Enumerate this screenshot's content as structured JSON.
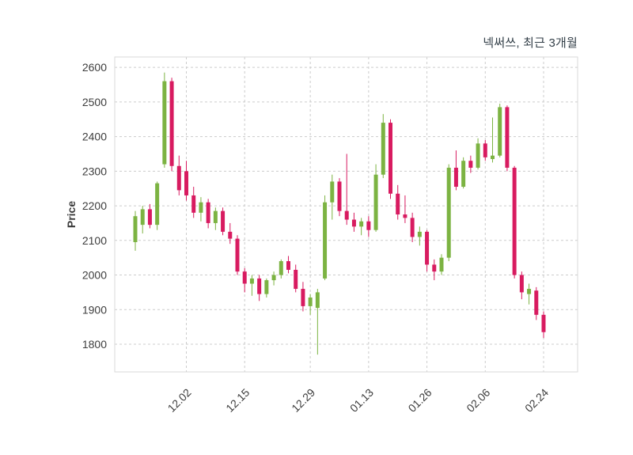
{
  "chart_data": {
    "type": "candlestick",
    "title": "넥써쓰, 최근 3개월",
    "ylabel": "Price",
    "grid": true,
    "legend": "none",
    "up_color": "#7cb342",
    "down_color": "#d81b60",
    "ylim": [
      1720,
      2630
    ],
    "y_ticks": [
      1800,
      1900,
      2000,
      2100,
      2200,
      2300,
      2400,
      2500,
      2600
    ],
    "x_tick_labels": [
      "12.02",
      "12.15",
      "12.29",
      "01.13",
      "01.26",
      "02.06",
      "02.24"
    ],
    "x_tick_indices": [
      7,
      15,
      24,
      32,
      40,
      48,
      56
    ],
    "candles_format": "open,high,low,close",
    "candles": [
      [
        2095,
        2185,
        2070,
        2170
      ],
      [
        2145,
        2200,
        2120,
        2190
      ],
      [
        2190,
        2205,
        2135,
        2145
      ],
      [
        2145,
        2270,
        2130,
        2265
      ],
      [
        2320,
        2585,
        2310,
        2560
      ],
      [
        2560,
        2570,
        2300,
        2315
      ],
      [
        2315,
        2345,
        2230,
        2245
      ],
      [
        2300,
        2330,
        2215,
        2230
      ],
      [
        2230,
        2255,
        2165,
        2180
      ],
      [
        2180,
        2225,
        2155,
        2210
      ],
      [
        2210,
        2220,
        2135,
        2150
      ],
      [
        2150,
        2195,
        2130,
        2185
      ],
      [
        2185,
        2195,
        2115,
        2125
      ],
      [
        2125,
        2150,
        2090,
        2105
      ],
      [
        2105,
        2115,
        2000,
        2010
      ],
      [
        2010,
        2020,
        1950,
        1975
      ],
      [
        1975,
        2000,
        1940,
        1990
      ],
      [
        1990,
        2000,
        1925,
        1945
      ],
      [
        1945,
        1990,
        1935,
        1985
      ],
      [
        1985,
        2010,
        1970,
        2000
      ],
      [
        2000,
        2045,
        1990,
        2040
      ],
      [
        2040,
        2055,
        2005,
        2015
      ],
      [
        2015,
        2030,
        1950,
        1960
      ],
      [
        1960,
        1980,
        1895,
        1910
      ],
      [
        1910,
        1945,
        1885,
        1935
      ],
      [
        1905,
        1960,
        1770,
        1950
      ],
      [
        1990,
        2230,
        1985,
        2210
      ],
      [
        2210,
        2290,
        2160,
        2270
      ],
      [
        2270,
        2280,
        2170,
        2185
      ],
      [
        2185,
        2350,
        2145,
        2160
      ],
      [
        2160,
        2180,
        2125,
        2140
      ],
      [
        2140,
        2165,
        2115,
        2155
      ],
      [
        2155,
        2170,
        2110,
        2130
      ],
      [
        2130,
        2320,
        2125,
        2290
      ],
      [
        2290,
        2465,
        2280,
        2440
      ],
      [
        2440,
        2450,
        2220,
        2235
      ],
      [
        2235,
        2260,
        2160,
        2175
      ],
      [
        2175,
        2230,
        2150,
        2165
      ],
      [
        2165,
        2180,
        2095,
        2110
      ],
      [
        2110,
        2140,
        2085,
        2125
      ],
      [
        2125,
        2130,
        2010,
        2030
      ],
      [
        2030,
        2045,
        1985,
        2010
      ],
      [
        2010,
        2060,
        2000,
        2050
      ],
      [
        2050,
        2320,
        2040,
        2310
      ],
      [
        2310,
        2360,
        2245,
        2255
      ],
      [
        2255,
        2340,
        2250,
        2330
      ],
      [
        2330,
        2345,
        2295,
        2310
      ],
      [
        2310,
        2395,
        2305,
        2380
      ],
      [
        2380,
        2390,
        2330,
        2340
      ],
      [
        2335,
        2455,
        2325,
        2345
      ],
      [
        2345,
        2495,
        2340,
        2485
      ],
      [
        2485,
        2490,
        2300,
        2310
      ],
      [
        2310,
        2315,
        1990,
        2000
      ],
      [
        2000,
        2010,
        1930,
        1950
      ],
      [
        1945,
        1975,
        1915,
        1960
      ],
      [
        1955,
        1965,
        1870,
        1885
      ],
      [
        1885,
        1895,
        1818,
        1835
      ]
    ]
  }
}
